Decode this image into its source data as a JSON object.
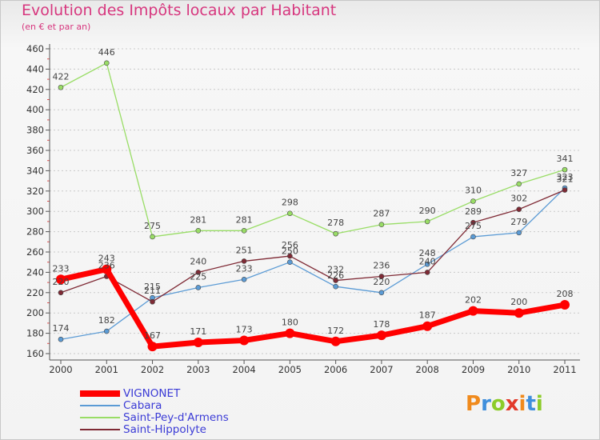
{
  "chart_data": {
    "type": "line",
    "title": "Evolution des Impôts locaux par Habitant",
    "subtitle": "(en € et par an)",
    "xlabel": "",
    "ylabel": "",
    "categories": [
      "2000",
      "2001",
      "2002",
      "2003",
      "2004",
      "2005",
      "2006",
      "2007",
      "2008",
      "2009",
      "2010",
      "2011"
    ],
    "ylim": [
      160,
      460
    ],
    "yticks": [
      160,
      180,
      200,
      220,
      240,
      260,
      280,
      300,
      320,
      340,
      360,
      380,
      400,
      420,
      440,
      460
    ],
    "grid": "horizontal dashed",
    "legend_position": "bottom-left",
    "series": [
      {
        "name": "VIGNONET",
        "color": "#ff0000",
        "values": [
          233,
          243,
          167,
          171,
          173,
          180,
          172,
          178,
          187,
          202,
          200,
          208
        ]
      },
      {
        "name": "Cabara",
        "color": "#5b9bd5",
        "values": [
          174,
          182,
          215,
          225,
          233,
          250,
          226,
          220,
          248,
          275,
          279,
          323
        ]
      },
      {
        "name": "Saint-Pey-d'Armens",
        "color": "#99dd66",
        "values": [
          422,
          446,
          275,
          281,
          281,
          298,
          278,
          287,
          290,
          310,
          327,
          341
        ]
      },
      {
        "name": "Saint-Hippolyte",
        "color": "#7f2a35",
        "values": [
          220,
          236,
          211,
          240,
          251,
          256,
          232,
          236,
          240,
          289,
          302,
          321
        ]
      }
    ]
  },
  "logo": {
    "text": "Proxiti",
    "letters": [
      "P",
      "r",
      "o",
      "x",
      "i",
      "t",
      "i"
    ],
    "colors": [
      "#f08a1c",
      "#3f8fdc",
      "#8ccc2a",
      "#e23a2a",
      "#f08a1c",
      "#3f8fdc",
      "#8ccc2a"
    ]
  }
}
